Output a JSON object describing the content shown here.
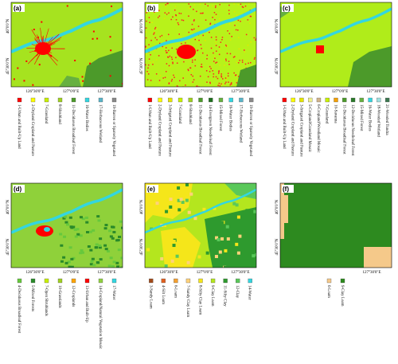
{
  "panels": [
    {
      "label": "(a)",
      "lat_labels": [
        "46°0'0\"N",
        "45°30'0\"N"
      ],
      "lon_labels": [
        "126°30'0\"E",
        "127°0'0\"E",
        "127°30'0\"E"
      ],
      "legend": [
        {
          "label": "1-Urban and Built-Up Land",
          "color": "#ff0000"
        },
        {
          "label": "2-Dryland Cropland and Pasture",
          "color": "#ffff00"
        },
        {
          "label": "7-Grassland",
          "color": "#c8f000"
        },
        {
          "label": "8-Shrubland",
          "color": "#a0d020"
        },
        {
          "label": "11-Deciduous Broadleaf Forest",
          "color": "#4c9a2a"
        },
        {
          "label": "16-Water Bodies",
          "color": "#33d6e0"
        },
        {
          "label": "17-Herbaceous Wetland",
          "color": "#5ab4c8"
        },
        {
          "label": "19-Barren or Sparsely Vegetated",
          "color": "#888888"
        }
      ]
    },
    {
      "label": "(b)",
      "lat_labels": [
        "46°0'0\"N",
        "45°30'0\"N"
      ],
      "lon_labels": [
        "126°30'0\"E",
        "127°0'0\"E",
        "127°30'0\"E"
      ],
      "legend": [
        {
          "label": "1-Urban and Built-Up Land",
          "color": "#ff0000"
        },
        {
          "label": "2-Dryland Cropland and Pasture",
          "color": "#ffff00"
        },
        {
          "label": "3-Irrigated Cropland and Pasture",
          "color": "#e6e600"
        },
        {
          "label": "7-Grassland",
          "color": "#c8f000"
        },
        {
          "label": "8-Shrubland",
          "color": "#a0d020"
        },
        {
          "label": "11-Deciduous Broadleaf Forest",
          "color": "#4c9a2a"
        },
        {
          "label": "14-Evergreen Needleleaf Forest",
          "color": "#1e6e1e"
        },
        {
          "label": "15-Mixed Forest",
          "color": "#66b040"
        },
        {
          "label": "16-Water Bodies",
          "color": "#33d6e0"
        },
        {
          "label": "17-Herbaceous Wetland",
          "color": "#5ab4c8"
        },
        {
          "label": "19-Barren or Sparsely Vegetated",
          "color": "#888888"
        }
      ]
    },
    {
      "label": "(c)",
      "lat_labels": [
        "46°0'0\"N",
        "45°30'0\"N"
      ],
      "lon_labels": [
        "126°30'0\"E",
        "127°0'0\"E",
        "127°30'0\"E"
      ],
      "legend": [
        {
          "label": "1-Urban and Built-Up Land",
          "color": "#ff0000"
        },
        {
          "label": "2-Dryland Cropland and Pasture",
          "color": "#ffff00"
        },
        {
          "label": "3-Irrigated Cropland and Pasture",
          "color": "#e6e600"
        },
        {
          "label": "5-Cropland/Grassland Mosaic",
          "color": "#f0f08c"
        },
        {
          "label": "6-Cropland/Woodland Mosaic",
          "color": "#d2b48c"
        },
        {
          "label": "7-Grassland",
          "color": "#c8f000"
        },
        {
          "label": "10-Savanna",
          "color": "#f5a000"
        },
        {
          "label": "11-Deciduous Broadleaf Forest",
          "color": "#4c9a2a"
        },
        {
          "label": "12-Deciduous Needleleaf Forest",
          "color": "#2a7a2a"
        },
        {
          "label": "15-Mixed Forest",
          "color": "#66b040"
        },
        {
          "label": "16-Water Bodies",
          "color": "#33d6e0"
        },
        {
          "label": "18-Wooded Wetland",
          "color": "#a0e0e0"
        },
        {
          "label": "21-Wooded Tundra",
          "color": "#3c7850"
        }
      ]
    },
    {
      "label": "(d)",
      "lat_labels": [
        "46°0'0\"N",
        "45°30'0\"N"
      ],
      "lon_labels": [
        "126°30'0\"E",
        "127°0'0\"E",
        "127°30'0\"E"
      ],
      "legend": [
        {
          "label": "4-Deciduous Broadleaf Forest",
          "color": "#66c83c"
        },
        {
          "label": "5-Mixed Forests",
          "color": "#2a8a2a"
        },
        {
          "label": "7-Open Shrublands",
          "color": "#c8f000"
        },
        {
          "label": "10-Grasslands",
          "color": "#a0d020"
        },
        {
          "label": "12-Croplands",
          "color": "#ffa500"
        },
        {
          "label": "13-Urban and Built-Up",
          "color": "#ff0000"
        },
        {
          "label": "14-Cropland/Natural Vegetation Mosaic",
          "color": "#90d040"
        },
        {
          "label": "17-Water",
          "color": "#33d6e0"
        }
      ]
    },
    {
      "label": "(e)",
      "lat_labels": [
        "46°0'0\"N",
        "45°30'0\"N"
      ],
      "lon_labels": [
        "126°30'0\"E",
        "127°0'0\"E",
        "127°30'0\"E"
      ],
      "legend": [
        {
          "label": "3-Sandy Loam",
          "color": "#a04a1a"
        },
        {
          "label": "4-Silt Loam",
          "color": "#e06020"
        },
        {
          "label": "6-Loam",
          "color": "#f5a030"
        },
        {
          "label": "7-Sandy Clay Loam",
          "color": "#ffd27a"
        },
        {
          "label": "8-Silty Clay Loam",
          "color": "#f5e61a"
        },
        {
          "label": "9-Clay Loam",
          "color": "#b4e61e"
        },
        {
          "label": "11-Silty Clay",
          "color": "#2e9a2e"
        },
        {
          "label": "12-Clay",
          "color": "#5ac85a"
        },
        {
          "label": "14-Water",
          "color": "#33d6e0"
        }
      ]
    },
    {
      "label": "(f)",
      "lat_labels": [
        "46°0'0\"N",
        "45°30'0\"N"
      ],
      "lon_labels": [
        "127°30'0\"E"
      ],
      "legend": [
        {
          "label": "6-Loam",
          "color": "#f5c98a"
        },
        {
          "label": "9-Clay Loam",
          "color": "#2d8a1f"
        }
      ]
    }
  ]
}
